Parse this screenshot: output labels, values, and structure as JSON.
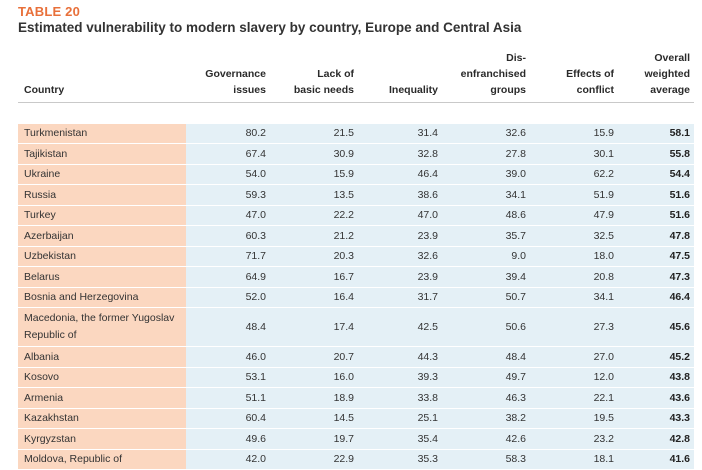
{
  "table_label": "TABLE 20",
  "title": "Estimated vulnerability to modern slavery by country, Europe and Central Asia",
  "columns": {
    "country": "Country",
    "governance": [
      "Governance",
      "issues"
    ],
    "basic_needs": [
      "Lack of",
      "basic needs"
    ],
    "inequality": [
      "Inequality"
    ],
    "disenfranchised": [
      "Dis-",
      "enfranchised",
      "groups"
    ],
    "conflict": [
      "Effects of",
      "conflict"
    ],
    "overall": [
      "Overall",
      "weighted",
      "average"
    ]
  },
  "rows": [
    {
      "country": "Turkmenistan",
      "governance": "80.2",
      "basic_needs": "21.5",
      "inequality": "31.4",
      "disenfranchised": "32.6",
      "conflict": "15.9",
      "overall": "58.1"
    },
    {
      "country": "Tajikistan",
      "governance": "67.4",
      "basic_needs": "30.9",
      "inequality": "32.8",
      "disenfranchised": "27.8",
      "conflict": "30.1",
      "overall": "55.8"
    },
    {
      "country": "Ukraine",
      "governance": "54.0",
      "basic_needs": "15.9",
      "inequality": "46.4",
      "disenfranchised": "39.0",
      "conflict": "62.2",
      "overall": "54.4"
    },
    {
      "country": "Russia",
      "governance": "59.3",
      "basic_needs": "13.5",
      "inequality": "38.6",
      "disenfranchised": "34.1",
      "conflict": "51.9",
      "overall": "51.6"
    },
    {
      "country": "Turkey",
      "governance": "47.0",
      "basic_needs": "22.2",
      "inequality": "47.0",
      "disenfranchised": "48.6",
      "conflict": "47.9",
      "overall": "51.6"
    },
    {
      "country": "Azerbaijan",
      "governance": "60.3",
      "basic_needs": "21.2",
      "inequality": "23.9",
      "disenfranchised": "35.7",
      "conflict": "32.5",
      "overall": "47.8"
    },
    {
      "country": "Uzbekistan",
      "governance": "71.7",
      "basic_needs": "20.3",
      "inequality": "32.6",
      "disenfranchised": "9.0",
      "conflict": "18.0",
      "overall": "47.5"
    },
    {
      "country": "Belarus",
      "governance": "64.9",
      "basic_needs": "16.7",
      "inequality": "23.9",
      "disenfranchised": "39.4",
      "conflict": "20.8",
      "overall": "47.3"
    },
    {
      "country": "Bosnia and Herzegovina",
      "governance": "52.0",
      "basic_needs": "16.4",
      "inequality": "31.7",
      "disenfranchised": "50.7",
      "conflict": "34.1",
      "overall": "46.4"
    },
    {
      "country": "Macedonia, the former Yugoslav Republic of",
      "governance": "48.4",
      "basic_needs": "17.4",
      "inequality": "42.5",
      "disenfranchised": "50.6",
      "conflict": "27.3",
      "overall": "45.6"
    },
    {
      "country": "Albania",
      "governance": "46.0",
      "basic_needs": "20.7",
      "inequality": "44.3",
      "disenfranchised": "48.4",
      "conflict": "27.0",
      "overall": "45.2"
    },
    {
      "country": "Kosovo",
      "governance": "53.1",
      "basic_needs": "16.0",
      "inequality": "39.3",
      "disenfranchised": "49.7",
      "conflict": "12.0",
      "overall": "43.8"
    },
    {
      "country": "Armenia",
      "governance": "51.1",
      "basic_needs": "18.9",
      "inequality": "33.8",
      "disenfranchised": "46.3",
      "conflict": "22.1",
      "overall": "43.6"
    },
    {
      "country": "Kazakhstan",
      "governance": "60.4",
      "basic_needs": "14.5",
      "inequality": "25.1",
      "disenfranchised": "38.2",
      "conflict": "19.5",
      "overall": "43.3"
    },
    {
      "country": "Kyrgyzstan",
      "governance": "49.6",
      "basic_needs": "19.7",
      "inequality": "35.4",
      "disenfranchised": "42.6",
      "conflict": "23.2",
      "overall": "42.8"
    },
    {
      "country": "Moldova, Republic of",
      "governance": "42.0",
      "basic_needs": "22.9",
      "inequality": "35.3",
      "disenfranchised": "58.3",
      "conflict": "18.1",
      "overall": "41.6"
    }
  ],
  "colors": {
    "label_orange": "#e8703a",
    "country_cell": "#fbd7c0",
    "value_cell": "#e4f0f6"
  }
}
